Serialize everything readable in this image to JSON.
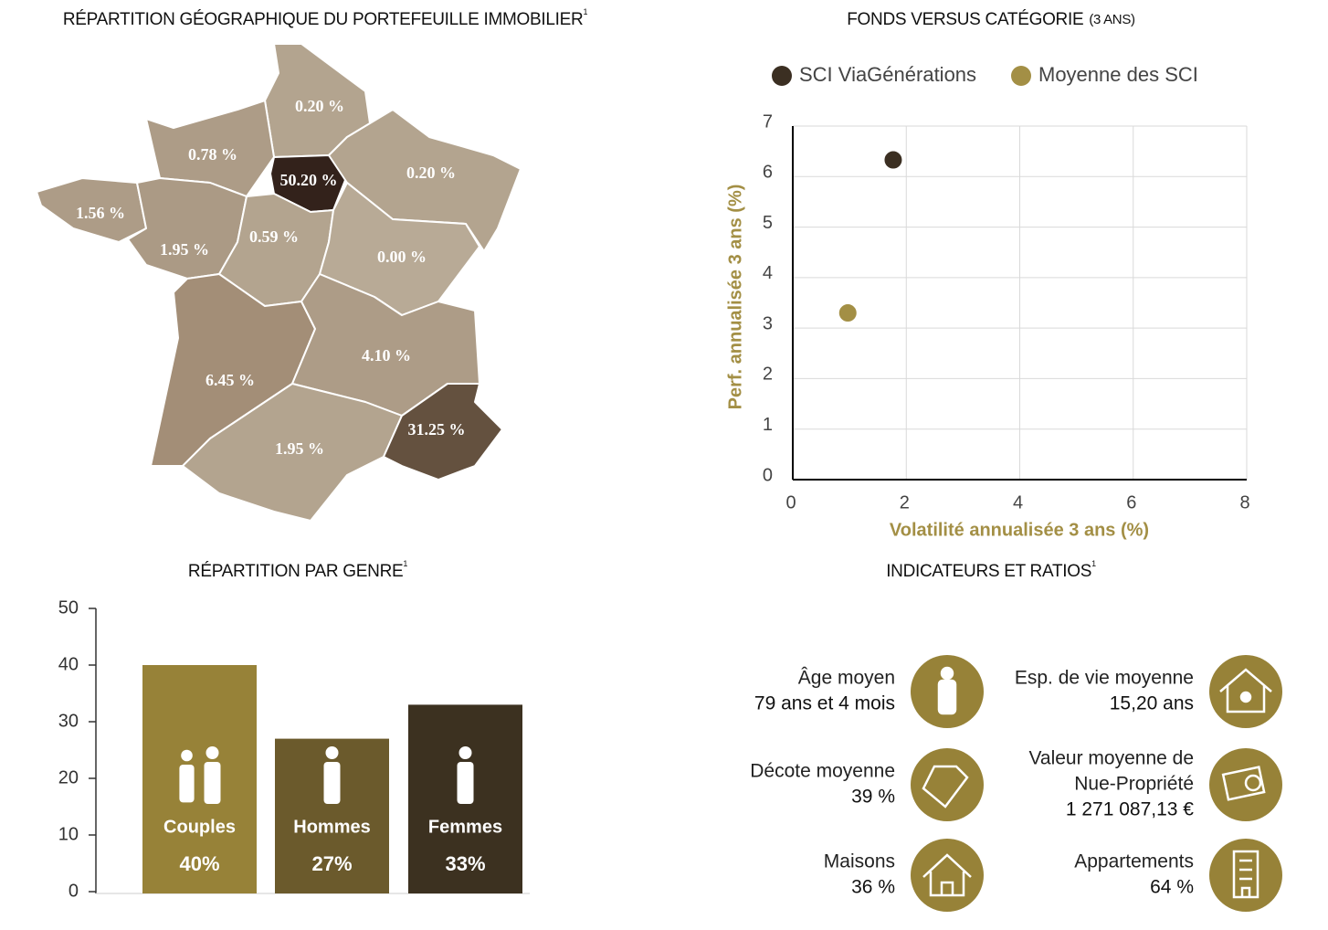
{
  "chart_data": [
    {
      "type": "choropleth",
      "title": "RÉPARTITION GÉOGRAPHIQUE DU PORTEFEUILLE IMMOBILIER",
      "title_note": "1",
      "values": [
        0.2,
        0.78,
        50.2,
        0.2,
        1.56,
        1.95,
        0.59,
        0,
        6.45,
        4.1,
        1.95,
        31.25
      ],
      "value_labels": [
        "0.20 %",
        "0.78 %",
        "50.20 %",
        "0.20 %",
        "1.56 %",
        "1.95 %",
        "0.59 %",
        "0.00 %",
        "6.45 %",
        "4.10 %",
        "1.95 %",
        "31.25 %"
      ],
      "colors": [
        "#b3a48f",
        "#ad9c87",
        "#33221b",
        "#b3a48f",
        "#ad9c87",
        "#ab9a85",
        "#b3a48f",
        "#b8aa96",
        "#a38e77",
        "#ad9c87",
        "#b3a48f",
        "#64513f"
      ]
    },
    {
      "type": "scatter",
      "title": "FONDS VERSUS CATÉGORIE",
      "subtitle": "(3 ANS)",
      "x_label": "Volatilité annualisée 3 ans (%)",
      "y_label": "Perf. annualisée 3 ans (%)",
      "xlim": [
        0,
        8
      ],
      "xticks": [
        0,
        2,
        4,
        6,
        8
      ],
      "ylim": [
        0,
        7
      ],
      "yticks": [
        0,
        1,
        2,
        3,
        4,
        5,
        6,
        7
      ],
      "grid": true,
      "series": [
        {
          "name": "SCI ViaGénérations",
          "color": "#3b2f22",
          "x": [
            1.77
          ],
          "values": [
            6.33
          ]
        },
        {
          "name": "Moyenne des SCI",
          "color": "#a38f45",
          "x": [
            0.97
          ],
          "values": [
            3.3
          ]
        }
      ]
    },
    {
      "type": "bar",
      "title": "RÉPARTITION PAR GENRE",
      "title_note": "1",
      "categories": [
        "Couples",
        "Hommes",
        "Femmes"
      ],
      "values": [
        40,
        27,
        33
      ],
      "value_labels": [
        "40%",
        "27%",
        "33%"
      ],
      "colors": [
        "#978238",
        "#6b5a2c",
        "#3c3120"
      ],
      "ylim": [
        0,
        50
      ],
      "yticks": [
        0,
        10,
        20,
        30,
        40,
        50
      ]
    }
  ],
  "indicators": {
    "title": "INDICATEURS ET RATIOS",
    "title_note": "1",
    "items": [
      {
        "label": [
          "Âge moyen"
        ],
        "value": "79 ans et 4 mois"
      },
      {
        "label": [
          "Esp. de vie moyenne"
        ],
        "value": "15,20 ans"
      },
      {
        "label": [
          "Décote moyenne"
        ],
        "value": "39 %"
      },
      {
        "label": [
          "Valeur moyenne de",
          "Nue-Propriété"
        ],
        "value": "1 271 087,13 €"
      },
      {
        "label": [
          "Maisons"
        ],
        "value": "36 %"
      },
      {
        "label": [
          "Appartements"
        ],
        "value": "64 %"
      }
    ]
  }
}
